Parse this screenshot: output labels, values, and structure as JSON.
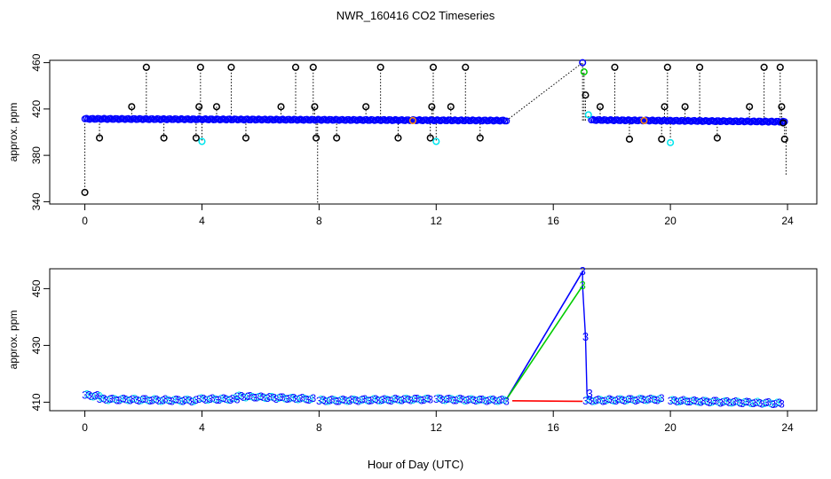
{
  "title": "NWR_160416  CO2 Timeseries",
  "xlabel": "Hour of Day (UTC)",
  "colors": {
    "black": "#000000",
    "blue": "#0000ff",
    "cyan": "#00e5ee",
    "green": "#00cc00",
    "red": "#ff0000",
    "orange": "#ff8c00"
  },
  "chart_data": [
    {
      "type": "scatter",
      "panel": "top",
      "ylabel": "approx. ppm",
      "xlim": [
        -1.2,
        25
      ],
      "ylim": [
        338,
        462
      ],
      "xticks": [
        0,
        4,
        8,
        12,
        16,
        20,
        24
      ],
      "yticks": [
        340,
        380,
        420,
        460
      ],
      "baseline_segments": [
        {
          "x0": 0.0,
          "x1": 14.4,
          "y0": 411.5,
          "y1": 410.0
        },
        {
          "x0": 17.3,
          "x1": 23.9,
          "y0": 410.5,
          "y1": 409.0
        }
      ],
      "gap_line": [
        [
          14.4,
          410
        ],
        [
          17.0,
          460
        ]
      ],
      "spikes": [
        {
          "x": 0.0,
          "y": 348,
          "draw": false
        },
        {
          "x": 0.5,
          "y": 395
        },
        {
          "x": 1.6,
          "y": 422
        },
        {
          "x": 2.1,
          "y": 456
        },
        {
          "x": 2.7,
          "y": 395
        },
        {
          "x": 3.8,
          "y": 395
        },
        {
          "x": 3.9,
          "y": 422
        },
        {
          "x": 3.95,
          "y": 456
        },
        {
          "x": 4.0,
          "y": 392,
          "color": "cyan"
        },
        {
          "x": 4.5,
          "y": 422
        },
        {
          "x": 5.0,
          "y": 456
        },
        {
          "x": 5.5,
          "y": 395
        },
        {
          "x": 6.7,
          "y": 422
        },
        {
          "x": 7.2,
          "y": 456
        },
        {
          "x": 7.8,
          "y": 456
        },
        {
          "x": 7.85,
          "y": 422
        },
        {
          "x": 7.9,
          "y": 395
        },
        {
          "x": 8.6,
          "y": 395
        },
        {
          "x": 9.6,
          "y": 422
        },
        {
          "x": 10.1,
          "y": 456
        },
        {
          "x": 10.7,
          "y": 395
        },
        {
          "x": 11.2,
          "y": 410,
          "color": "orange"
        },
        {
          "x": 11.8,
          "y": 395
        },
        {
          "x": 11.85,
          "y": 422
        },
        {
          "x": 11.9,
          "y": 456
        },
        {
          "x": 12.0,
          "y": 392,
          "color": "cyan"
        },
        {
          "x": 12.5,
          "y": 422
        },
        {
          "x": 13.0,
          "y": 456
        },
        {
          "x": 13.5,
          "y": 395
        },
        {
          "x": 17.0,
          "y": 460,
          "color": "blue"
        },
        {
          "x": 17.05,
          "y": 452,
          "color": "green"
        },
        {
          "x": 17.1,
          "y": 432
        },
        {
          "x": 17.2,
          "y": 415,
          "color": "cyan"
        },
        {
          "x": 17.6,
          "y": 422
        },
        {
          "x": 18.1,
          "y": 456
        },
        {
          "x": 18.6,
          "y": 394
        },
        {
          "x": 19.1,
          "y": 410,
          "color": "orange"
        },
        {
          "x": 19.7,
          "y": 394
        },
        {
          "x": 19.8,
          "y": 422
        },
        {
          "x": 19.9,
          "y": 456
        },
        {
          "x": 20.0,
          "y": 391,
          "color": "cyan"
        },
        {
          "x": 20.5,
          "y": 422
        },
        {
          "x": 21.0,
          "y": 456
        },
        {
          "x": 21.6,
          "y": 395
        },
        {
          "x": 22.7,
          "y": 422
        },
        {
          "x": 23.2,
          "y": 456
        },
        {
          "x": 23.75,
          "y": 456
        },
        {
          "x": 23.8,
          "y": 422
        },
        {
          "x": 23.85,
          "y": 408
        },
        {
          "x": 23.9,
          "y": 394
        }
      ],
      "tail_drops": [
        {
          "x": 0.0,
          "y": 348
        },
        {
          "x": 7.95,
          "y": 338
        },
        {
          "x": 23.95,
          "y": 362
        }
      ]
    },
    {
      "type": "line",
      "panel": "bottom",
      "ylabel": "approx. ppm",
      "xlim": [
        -1.2,
        25
      ],
      "ylim": [
        407,
        457
      ],
      "xticks": [
        0,
        4,
        8,
        12,
        16,
        20,
        24
      ],
      "yticks": [
        410,
        430,
        450
      ],
      "marker_label": "3",
      "segments": [
        {
          "x0": 0.0,
          "x1": 0.5,
          "y0": 412.5,
          "y1": 412.0
        },
        {
          "x0": 0.5,
          "x1": 3.8,
          "y0": 411.0,
          "y1": 410.5
        },
        {
          "x0": 3.9,
          "x1": 5.2,
          "y0": 411.0,
          "y1": 411.0
        },
        {
          "x0": 5.2,
          "x1": 7.8,
          "y0": 412.0,
          "y1": 411.0
        },
        {
          "x0": 8.0,
          "x1": 11.8,
          "y0": 410.5,
          "y1": 411.0
        },
        {
          "x0": 12.0,
          "x1": 14.4,
          "y0": 411.0,
          "y1": 410.5
        },
        {
          "x0": 17.1,
          "x1": 19.7,
          "y0": 410.5,
          "y1": 411.0
        },
        {
          "x0": 20.0,
          "x1": 23.8,
          "y0": 410.5,
          "y1": 409.5
        }
      ],
      "series_spike": [
        {
          "name": "blue",
          "points": [
            [
              14.4,
              411
            ],
            [
              17.0,
              456
            ]
          ]
        },
        {
          "name": "green",
          "points": [
            [
              14.4,
              411
            ],
            [
              17.0,
              451
            ]
          ]
        },
        {
          "name": "red",
          "points": [
            [
              14.6,
              410.5
            ],
            [
              17.0,
              410.3
            ]
          ]
        }
      ],
      "drop_points": [
        [
          17.0,
          456
        ],
        [
          17.0,
          451
        ],
        [
          17.1,
          433
        ],
        [
          17.15,
          413
        ]
      ]
    }
  ]
}
